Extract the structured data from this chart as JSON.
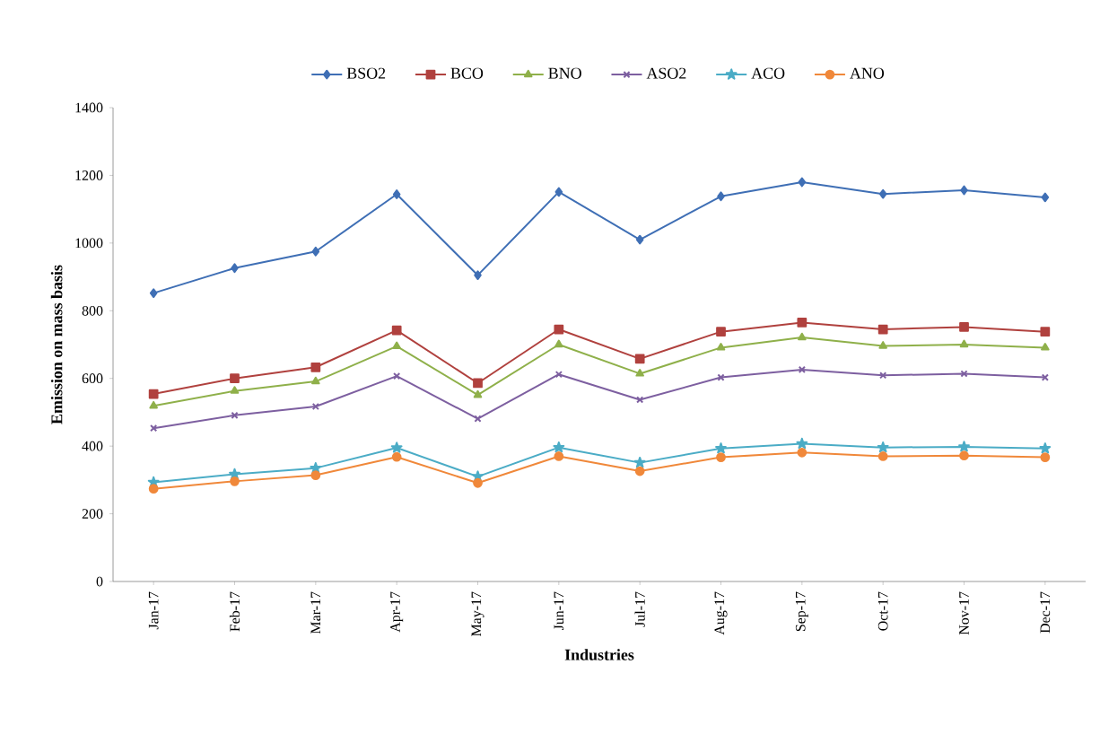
{
  "chart_data": {
    "type": "line",
    "xlabel": "Industries",
    "ylabel": "Emission on mass basis",
    "categories": [
      "Jan-17",
      "Feb-17",
      "Mar-17",
      "Apr-17",
      "May-17",
      "Jun-17",
      "Jul-17",
      "Aug-17",
      "Sep-17",
      "Oct-17",
      "Nov-17",
      "Dec-17"
    ],
    "ylim": [
      0,
      1400
    ],
    "yticks": [
      0,
      200,
      400,
      600,
      800,
      1000,
      1200,
      1400
    ],
    "grid": false,
    "legend": "top",
    "series": [
      {
        "name": "BSO2",
        "color": "#3f6fb5",
        "marker": "diamond",
        "values": [
          852,
          926,
          975,
          1144,
          905,
          1151,
          1010,
          1138,
          1180,
          1145,
          1156,
          1135
        ]
      },
      {
        "name": "BCO",
        "color": "#b0413e",
        "marker": "square",
        "values": [
          554,
          600,
          633,
          742,
          586,
          745,
          658,
          738,
          765,
          745,
          752,
          738
        ]
      },
      {
        "name": "BNO",
        "color": "#8fb04a",
        "marker": "triangle",
        "values": [
          519,
          563,
          591,
          695,
          551,
          700,
          614,
          691,
          721,
          696,
          700,
          691
        ]
      },
      {
        "name": "ASO2",
        "color": "#7d5fa0",
        "marker": "cross",
        "values": [
          453,
          491,
          517,
          607,
          481,
          612,
          537,
          603,
          626,
          609,
          614,
          603
        ]
      },
      {
        "name": "ACO",
        "color": "#4bacc6",
        "marker": "star",
        "values": [
          293,
          317,
          335,
          395,
          310,
          396,
          351,
          393,
          407,
          396,
          398,
          393
        ]
      },
      {
        "name": "ANO",
        "color": "#f0883a",
        "marker": "circle",
        "values": [
          274,
          296,
          314,
          368,
          291,
          370,
          326,
          367,
          381,
          370,
          372,
          367
        ]
      }
    ]
  }
}
